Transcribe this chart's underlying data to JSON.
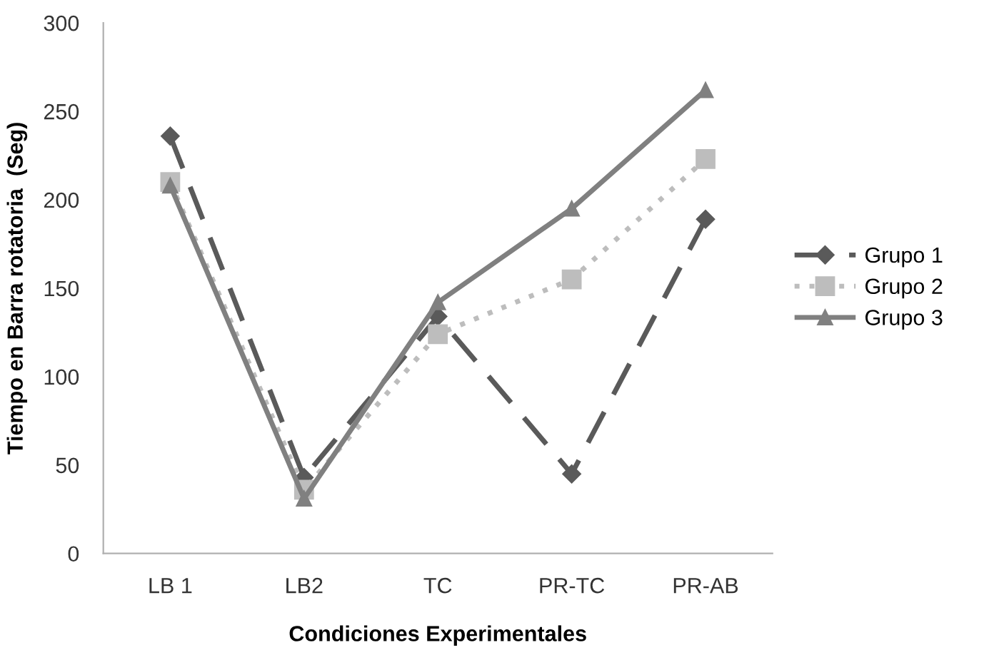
{
  "chart_data": {
    "type": "line",
    "xlabel": "Condiciones Experimentales",
    "ylabel": "Tiempo en Barra rotatoria  (Seg)",
    "categories": [
      "LB 1",
      "LB2",
      "TC",
      "PR-TC",
      "PR-AB"
    ],
    "series": [
      {
        "name": "Grupo 1",
        "color": "#5a5a5a",
        "values": [
          236,
          43,
          134,
          45,
          189
        ],
        "marker": "diamond",
        "line_style": "dashed"
      },
      {
        "name": "Grupo 2",
        "color": "#bdbdbd",
        "values": [
          210,
          36,
          124,
          155,
          223
        ],
        "marker": "square",
        "line_style": "dotted"
      },
      {
        "name": "Grupo 3",
        "color": "#808080",
        "values": [
          208,
          31,
          142,
          195,
          262
        ],
        "marker": "triangle",
        "line_style": "solid"
      }
    ],
    "ylim": [
      0,
      300
    ],
    "yticks": [
      0,
      50,
      100,
      150,
      200,
      250,
      300
    ],
    "grid": false,
    "legend": "right"
  }
}
